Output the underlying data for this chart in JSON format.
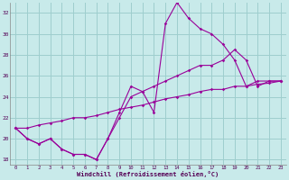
{
  "background_color": "#c8eaea",
  "grid_color": "#9ecece",
  "line_color": "#990099",
  "marker_color": "#990099",
  "xlabel": "Windchill (Refroidissement éolien,°C)",
  "xlabel_color": "#550055",
  "tick_color": "#550055",
  "xlim": [
    -0.5,
    23.5
  ],
  "ylim": [
    17.5,
    33.0
  ],
  "yticks": [
    18,
    20,
    22,
    24,
    26,
    28,
    30,
    32
  ],
  "xticks": [
    0,
    1,
    2,
    3,
    4,
    5,
    6,
    7,
    8,
    9,
    10,
    11,
    12,
    13,
    14,
    15,
    16,
    17,
    18,
    19,
    20,
    21,
    22,
    23
  ],
  "series": [
    [
      21.0,
      20.0,
      19.5,
      20.0,
      19.0,
      18.5,
      18.5,
      18.0,
      20.0,
      22.5,
      25.0,
      24.5,
      22.5,
      31.0,
      33.0,
      31.5,
      30.5,
      30.0,
      29.0,
      27.5,
      25.0,
      25.5,
      25.5,
      25.5
    ],
    [
      21.0,
      20.0,
      19.5,
      20.0,
      19.0,
      18.5,
      18.5,
      18.0,
      20.0,
      22.0,
      24.0,
      24.5,
      25.0,
      25.5,
      26.0,
      26.5,
      27.0,
      27.0,
      27.5,
      28.5,
      27.5,
      25.0,
      25.5,
      25.5
    ],
    [
      21.0,
      21.0,
      21.3,
      21.5,
      21.7,
      22.0,
      22.0,
      22.2,
      22.5,
      22.8,
      23.0,
      23.2,
      23.5,
      23.8,
      24.0,
      24.2,
      24.5,
      24.7,
      24.7,
      25.0,
      25.0,
      25.2,
      25.3,
      25.5
    ]
  ]
}
